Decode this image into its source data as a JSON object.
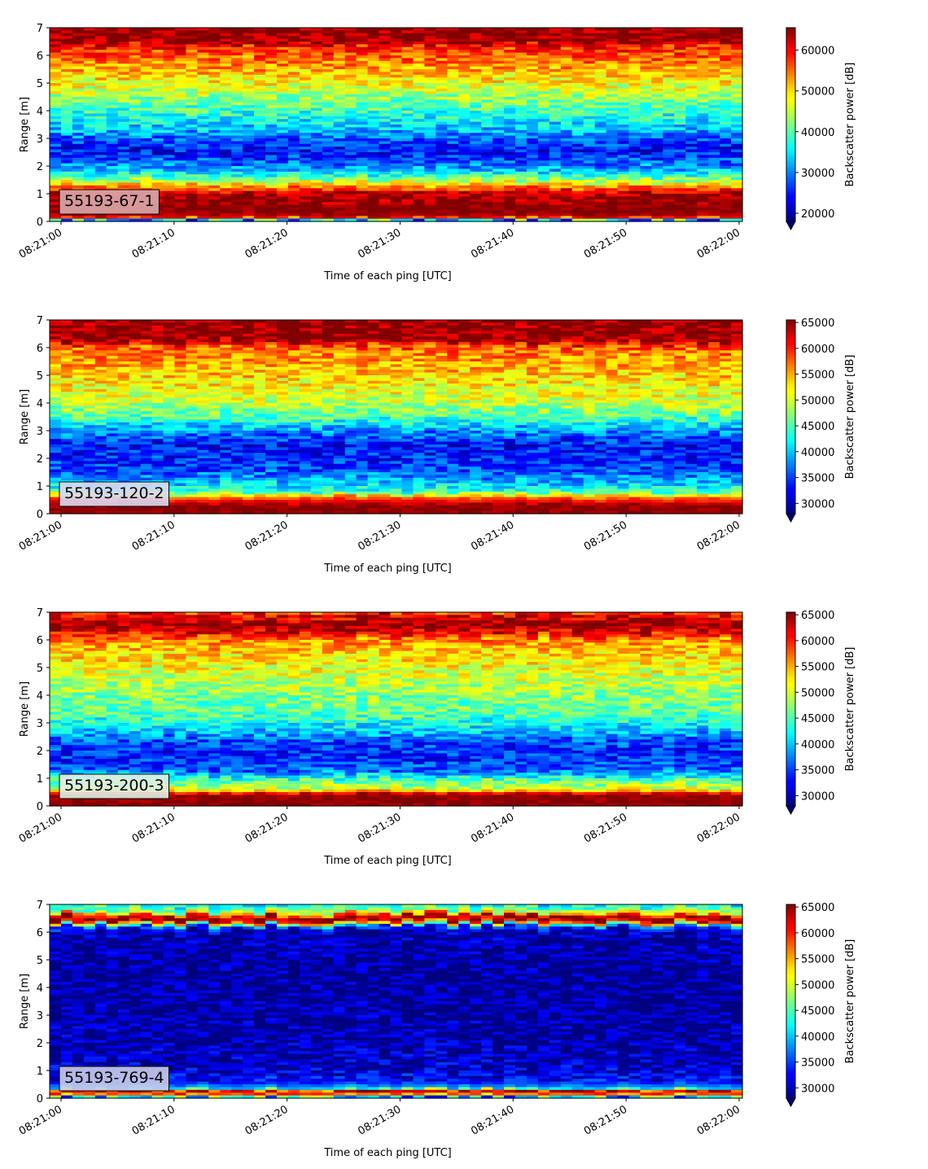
{
  "chart_data": [
    {
      "type": "heatmap",
      "label": "55193-67-1",
      "xlabel": "Time of each ping [UTC]",
      "ylabel": "Range [m]",
      "xlim": [
        "08:21:00",
        "08:22:00"
      ],
      "ylim": [
        0,
        7
      ],
      "xticks": [
        "08:21:00",
        "08:21:10",
        "08:21:20",
        "08:21:30",
        "08:21:40",
        "08:21:50",
        "08:22:00"
      ],
      "yticks": [
        0,
        1,
        2,
        3,
        4,
        5,
        6,
        7
      ],
      "colorbar": {
        "label": "Backscatter power [dB]",
        "min": 18000,
        "max": 65500,
        "ticks": [
          20000,
          30000,
          40000,
          50000,
          60000
        ]
      },
      "label_box_color": "#dba9ab",
      "profile": [
        {
          "range": 0.0,
          "value": 20000
        },
        {
          "range": 0.15,
          "value": 62000
        },
        {
          "range": 0.35,
          "value": 65000
        },
        {
          "range": 1.0,
          "value": 64000
        },
        {
          "range": 1.2,
          "value": 55000
        },
        {
          "range": 1.45,
          "value": 45000
        },
        {
          "range": 1.65,
          "value": 38000
        },
        {
          "range": 1.85,
          "value": 33000
        },
        {
          "range": 2.1,
          "value": 29000
        },
        {
          "range": 2.5,
          "value": 24000
        },
        {
          "range": 2.9,
          "value": 27000
        },
        {
          "range": 3.3,
          "value": 33000
        },
        {
          "range": 3.8,
          "value": 37000
        },
        {
          "range": 4.3,
          "value": 41000
        },
        {
          "range": 4.8,
          "value": 46000
        },
        {
          "range": 5.3,
          "value": 50000
        },
        {
          "range": 5.8,
          "value": 54000
        },
        {
          "range": 6.3,
          "value": 58000
        },
        {
          "range": 6.5,
          "value": 65000
        },
        {
          "range": 7.0,
          "value": 65000
        }
      ]
    },
    {
      "type": "heatmap",
      "label": "55193-120-2",
      "xlabel": "Time of each ping [UTC]",
      "ylabel": "Range [m]",
      "xlim": [
        "08:21:00",
        "08:22:00"
      ],
      "ylim": [
        0,
        7
      ],
      "xticks": [
        "08:21:00",
        "08:21:10",
        "08:21:20",
        "08:21:30",
        "08:21:40",
        "08:21:50",
        "08:22:00"
      ],
      "yticks": [
        0,
        1,
        2,
        3,
        4,
        5,
        6,
        7
      ],
      "colorbar": {
        "label": "Backscatter power [dB]",
        "min": 28000,
        "max": 65500,
        "ticks": [
          30000,
          35000,
          40000,
          45000,
          50000,
          55000,
          60000,
          65000
        ]
      },
      "label_box_color": "#dcd8f0",
      "profile": [
        {
          "range": 0.0,
          "value": 65000
        },
        {
          "range": 0.3,
          "value": 65000
        },
        {
          "range": 0.55,
          "value": 58000
        },
        {
          "range": 0.8,
          "value": 44000
        },
        {
          "range": 1.2,
          "value": 39000
        },
        {
          "range": 1.6,
          "value": 35000
        },
        {
          "range": 2.0,
          "value": 34000
        },
        {
          "range": 2.5,
          "value": 33000
        },
        {
          "range": 3.0,
          "value": 38000
        },
        {
          "range": 3.5,
          "value": 45000
        },
        {
          "range": 4.0,
          "value": 49000
        },
        {
          "range": 4.5,
          "value": 51000
        },
        {
          "range": 5.0,
          "value": 53000
        },
        {
          "range": 5.5,
          "value": 55000
        },
        {
          "range": 6.0,
          "value": 57000
        },
        {
          "range": 6.3,
          "value": 65000
        },
        {
          "range": 7.0,
          "value": 65000
        }
      ]
    },
    {
      "type": "heatmap",
      "label": "55193-200-3",
      "xlabel": "Time of each ping [UTC]",
      "ylabel": "Range [m]",
      "xlim": [
        "08:21:00",
        "08:22:00"
      ],
      "ylim": [
        0,
        7
      ],
      "xticks": [
        "08:21:00",
        "08:21:10",
        "08:21:20",
        "08:21:30",
        "08:21:40",
        "08:21:50",
        "08:22:00"
      ],
      "yticks": [
        0,
        1,
        2,
        3,
        4,
        5,
        6,
        7
      ],
      "colorbar": {
        "label": "Backscatter power [dB]",
        "min": 28000,
        "max": 65500,
        "ticks": [
          30000,
          35000,
          40000,
          45000,
          50000,
          55000,
          60000,
          65000
        ]
      },
      "label_box_color": "#e0f0e6",
      "profile": [
        {
          "range": 0.0,
          "value": 65000
        },
        {
          "range": 0.4,
          "value": 65000
        },
        {
          "range": 0.6,
          "value": 50000
        },
        {
          "range": 0.9,
          "value": 46000
        },
        {
          "range": 1.3,
          "value": 36000
        },
        {
          "range": 1.8,
          "value": 34000
        },
        {
          "range": 2.3,
          "value": 35000
        },
        {
          "range": 2.8,
          "value": 41000
        },
        {
          "range": 3.3,
          "value": 45000
        },
        {
          "range": 4.0,
          "value": 47000
        },
        {
          "range": 4.5,
          "value": 49000
        },
        {
          "range": 5.0,
          "value": 51000
        },
        {
          "range": 5.5,
          "value": 53000
        },
        {
          "range": 6.0,
          "value": 56000
        },
        {
          "range": 6.3,
          "value": 62000
        },
        {
          "range": 6.5,
          "value": 65000
        },
        {
          "range": 6.9,
          "value": 61000
        },
        {
          "range": 7.0,
          "value": 58000
        }
      ]
    },
    {
      "type": "heatmap",
      "label": "55193-769-4",
      "xlabel": "Time of each ping [UTC]",
      "ylabel": "Range [m]",
      "xlim": [
        "08:21:00",
        "08:22:00"
      ],
      "ylim": [
        0,
        7
      ],
      "xticks": [
        "08:21:00",
        "08:21:10",
        "08:21:20",
        "08:21:30",
        "08:21:40",
        "08:21:50",
        "08:22:00"
      ],
      "yticks": [
        0,
        1,
        2,
        3,
        4,
        5,
        6,
        7
      ],
      "colorbar": {
        "label": "Backscatter power [dB]",
        "min": 28000,
        "max": 65500,
        "ticks": [
          30000,
          35000,
          40000,
          45000,
          50000,
          55000,
          60000,
          65000
        ]
      },
      "label_box_color": "#c8cce8",
      "profile": [
        {
          "range": 0.0,
          "value": 30000
        },
        {
          "range": 0.12,
          "value": 55000
        },
        {
          "range": 0.25,
          "value": 65000
        },
        {
          "range": 0.35,
          "value": 40000
        },
        {
          "range": 0.6,
          "value": 33000
        },
        {
          "range": 1.0,
          "value": 31000
        },
        {
          "range": 2.0,
          "value": 29500
        },
        {
          "range": 3.5,
          "value": 29000
        },
        {
          "range": 5.0,
          "value": 29000
        },
        {
          "range": 6.0,
          "value": 30000
        },
        {
          "range": 6.2,
          "value": 34000
        },
        {
          "range": 6.4,
          "value": 62000
        },
        {
          "range": 6.55,
          "value": 65000
        },
        {
          "range": 6.75,
          "value": 48000
        },
        {
          "range": 7.0,
          "value": 42000
        }
      ]
    }
  ]
}
